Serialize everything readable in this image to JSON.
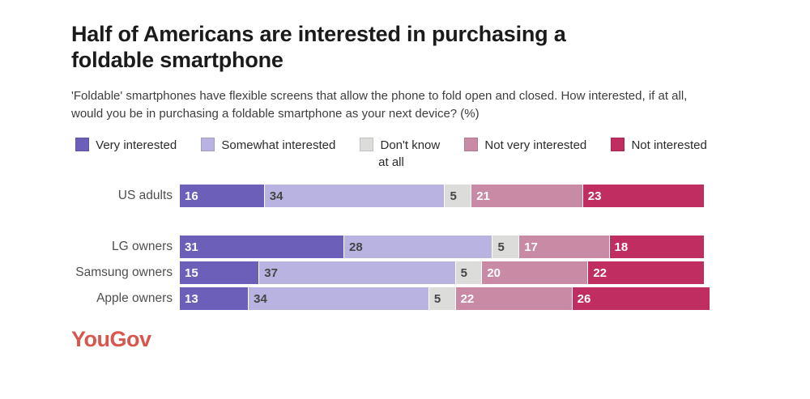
{
  "title": "Half of Americans are interested in purchasing a foldable smartphone",
  "subtitle": "'Foldable' smartphones have flexible screens that allow the phone to fold open and closed. How interested, if at all, would you be in purchasing a foldable smartphone as your next device? (%)",
  "brand": {
    "logo_text": "YouGov",
    "logo_color": "#d8564d"
  },
  "chart_data": {
    "type": "bar",
    "orientation": "horizontal",
    "stacked": true,
    "unit": "%",
    "xlim": [
      0,
      100
    ],
    "legend_position": "top",
    "value_labels": "inside-start",
    "categories": [
      "US adults",
      "LG owners",
      "Samsung owners",
      "Apple owners"
    ],
    "series": [
      {
        "name": "Very interested",
        "color": "#6c5fb9",
        "text_color": "#ffffff",
        "values": [
          16,
          31,
          15,
          13
        ]
      },
      {
        "name": "Somewhat interested",
        "color": "#b9b3e2",
        "text_color": "#454545",
        "values": [
          34,
          28,
          37,
          34
        ]
      },
      {
        "name": "Don't know",
        "color": "#dcdcdb",
        "text_color": "#454545",
        "values": [
          5,
          5,
          5,
          5
        ]
      },
      {
        "name": "Not very interested",
        "color": "#c98aa5",
        "text_color": "#ffffff",
        "values": [
          21,
          17,
          20,
          22
        ]
      },
      {
        "name": "Not interested at all",
        "color": "#c02d60",
        "text_color": "#ffffff",
        "values": [
          23,
          18,
          22,
          26
        ]
      }
    ]
  }
}
